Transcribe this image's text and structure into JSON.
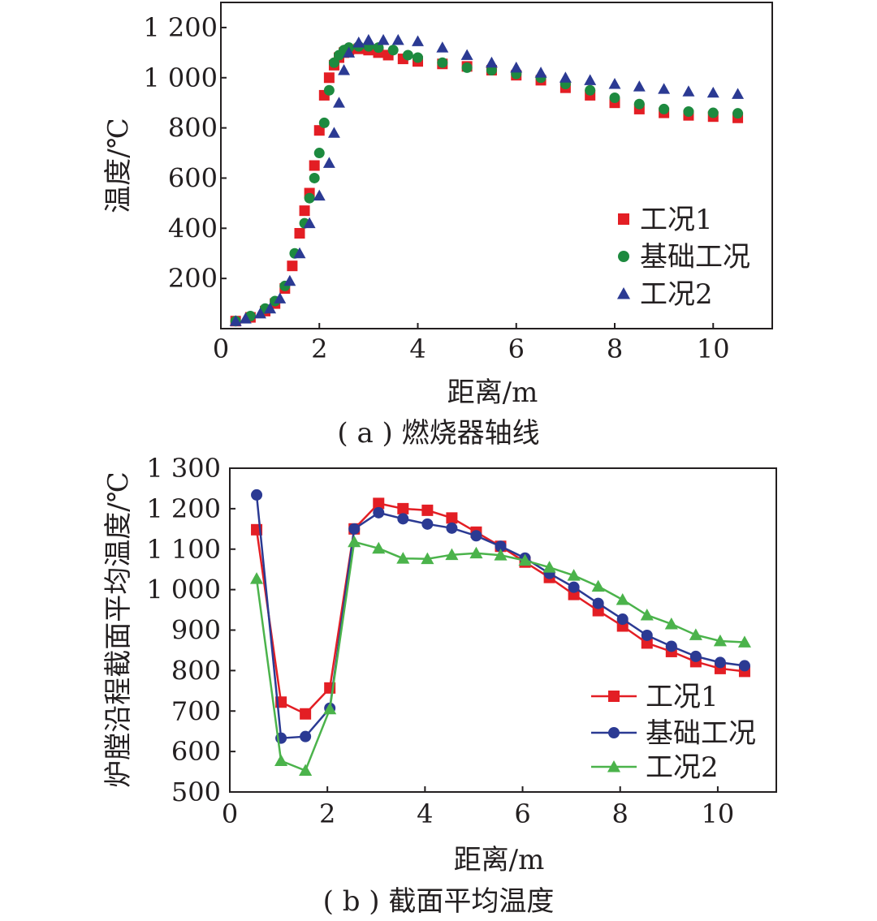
{
  "chart_data": [
    {
      "type": "scatter",
      "caption": "( a ) 燃烧器轴线",
      "xlabel": "距离/m",
      "ylabel": "温度/℃",
      "xlim": [
        0,
        11.2
      ],
      "ylim": [
        0,
        1300
      ],
      "xticks": [
        0,
        2,
        4,
        6,
        8,
        10
      ],
      "xtick_labels": [
        "0",
        "2",
        "4",
        "6",
        "8",
        "10"
      ],
      "yticks": [
        200,
        400,
        600,
        800,
        1000,
        1200
      ],
      "ytick_labels": [
        "200",
        "400",
        "600",
        "800",
        "1 000",
        "1 200"
      ],
      "legend_position": "center-right",
      "series": [
        {
          "name": "工况1",
          "color": "#e31e24",
          "marker": "square",
          "x": [
            0.3,
            0.6,
            0.9,
            1.1,
            1.3,
            1.45,
            1.6,
            1.7,
            1.8,
            1.9,
            2.0,
            2.1,
            2.2,
            2.3,
            2.4,
            2.5,
            2.6,
            2.8,
            3.0,
            3.2,
            3.4,
            3.7,
            4.0,
            4.5,
            5.0,
            5.5,
            6.0,
            6.5,
            7.0,
            7.5,
            8.0,
            8.5,
            9.0,
            9.5,
            10.0,
            10.5
          ],
          "y": [
            30,
            45,
            70,
            100,
            160,
            250,
            380,
            470,
            540,
            650,
            790,
            930,
            1000,
            1050,
            1080,
            1100,
            1110,
            1115,
            1110,
            1100,
            1090,
            1075,
            1065,
            1055,
            1045,
            1030,
            1010,
            990,
            960,
            930,
            900,
            875,
            860,
            850,
            845,
            840
          ]
        },
        {
          "name": "基础工况",
          "color": "#1d8a3f",
          "marker": "circle",
          "x": [
            0.3,
            0.6,
            0.9,
            1.1,
            1.3,
            1.5,
            1.7,
            1.8,
            1.9,
            2.0,
            2.1,
            2.2,
            2.3,
            2.4,
            2.5,
            2.6,
            2.8,
            3.0,
            3.2,
            3.5,
            3.8,
            4.0,
            4.5,
            5.0,
            5.5,
            6.0,
            6.5,
            7.0,
            7.5,
            8.0,
            8.5,
            9.0,
            9.5,
            10.0,
            10.5
          ],
          "y": [
            30,
            50,
            80,
            110,
            170,
            300,
            420,
            520,
            600,
            700,
            820,
            950,
            1060,
            1090,
            1110,
            1120,
            1125,
            1125,
            1120,
            1110,
            1090,
            1080,
            1060,
            1040,
            1030,
            1015,
            1000,
            975,
            950,
            920,
            895,
            875,
            865,
            860,
            858
          ]
        },
        {
          "name": "工况2",
          "color": "#2b3a93",
          "marker": "triangle",
          "x": [
            0.3,
            0.5,
            0.8,
            1.0,
            1.2,
            1.4,
            1.6,
            1.8,
            2.0,
            2.2,
            2.3,
            2.4,
            2.5,
            2.6,
            2.8,
            3.0,
            3.3,
            3.6,
            4.0,
            4.5,
            5.0,
            5.5,
            6.0,
            6.5,
            7.0,
            7.5,
            8.0,
            8.5,
            9.0,
            9.5,
            10.0,
            10.5
          ],
          "y": [
            30,
            40,
            60,
            80,
            120,
            190,
            300,
            420,
            530,
            660,
            780,
            900,
            1030,
            1100,
            1140,
            1150,
            1150,
            1150,
            1145,
            1120,
            1090,
            1060,
            1040,
            1020,
            1000,
            990,
            975,
            965,
            955,
            945,
            940,
            935
          ]
        }
      ]
    },
    {
      "type": "line",
      "caption": "( b ) 截面平均温度",
      "xlabel": "距离/m",
      "ylabel": "炉膛沿程截面平均温度/℃",
      "xlim": [
        0,
        11.2
      ],
      "ylim": [
        500,
        1300
      ],
      "xticks": [
        0,
        2,
        4,
        6,
        8,
        10
      ],
      "xtick_labels": [
        "0",
        "2",
        "4",
        "6",
        "8",
        "10"
      ],
      "yticks": [
        500,
        600,
        700,
        800,
        900,
        1000,
        1100,
        1200,
        1300
      ],
      "ytick_labels": [
        "500",
        "600",
        "700",
        "800",
        "900",
        "1 000",
        "1 100",
        "1 200",
        "1 300"
      ],
      "legend_position": "bottom-right",
      "x": [
        0.55,
        1.05,
        1.55,
        2.05,
        2.55,
        3.05,
        3.55,
        4.05,
        4.55,
        5.05,
        5.55,
        6.05,
        6.55,
        7.05,
        7.55,
        8.05,
        8.55,
        9.05,
        9.55,
        10.05,
        10.55
      ],
      "series": [
        {
          "name": "工况1",
          "color": "#e31e24",
          "marker": "square",
          "values": [
            1148,
            722,
            693,
            757,
            1150,
            1213,
            1200,
            1196,
            1177,
            1142,
            1107,
            1068,
            1030,
            988,
            948,
            910,
            868,
            847,
            822,
            805,
            798
          ]
        },
        {
          "name": "基础工况",
          "color": "#2b3a93",
          "marker": "circle",
          "values": [
            1234,
            633,
            637,
            707,
            1150,
            1190,
            1175,
            1162,
            1152,
            1133,
            1107,
            1078,
            1040,
            1006,
            966,
            927,
            887,
            860,
            835,
            820,
            812
          ]
        },
        {
          "name": "工况2",
          "color": "#4bb34b",
          "marker": "triangle",
          "values": [
            1027,
            577,
            553,
            705,
            1118,
            1102,
            1077,
            1076,
            1086,
            1090,
            1085,
            1072,
            1055,
            1035,
            1008,
            975,
            937,
            915,
            888,
            873,
            870
          ]
        }
      ]
    }
  ]
}
